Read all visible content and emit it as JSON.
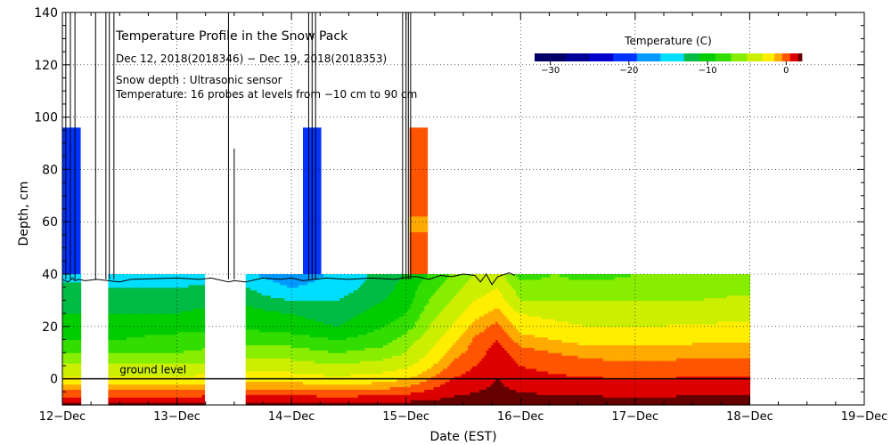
{
  "chart_data": {
    "type": "heatmap",
    "title": "Temperature Profile in the Snow Pack",
    "subtitle": "Dec 12, 2018(2018346) − Dec 19, 2018(2018353)",
    "notes": [
      "Snow depth : Ultrasonic sensor",
      "Temperature: 16 probes at levels from −10 cm to 90 cm"
    ],
    "ground_label": "ground level",
    "xlabel": "Date (EST)",
    "ylabel": "Depth, cm",
    "x_unit": "days since 12-Dec",
    "xlim": [
      0,
      7
    ],
    "ylim": [
      -10,
      140
    ],
    "x_ticks": [
      {
        "value": 0,
        "label": "12−Dec"
      },
      {
        "value": 1,
        "label": "13−Dec"
      },
      {
        "value": 2,
        "label": "14−Dec"
      },
      {
        "value": 3,
        "label": "15−Dec"
      },
      {
        "value": 4,
        "label": "16−Dec"
      },
      {
        "value": 5,
        "label": "17−Dec"
      },
      {
        "value": 6,
        "label": "18−Dec"
      },
      {
        "value": 7,
        "label": "19−Dec"
      }
    ],
    "y_ticks": [
      0,
      20,
      40,
      60,
      80,
      100,
      120,
      140
    ],
    "grid": true,
    "colorbar": {
      "title": "Temperature (C)",
      "range": [
        -32,
        2
      ],
      "ticks": [
        -30,
        -20,
        -10,
        0
      ],
      "bands": [
        {
          "from": -32,
          "to": -28,
          "color": "#000066"
        },
        {
          "from": -28,
          "to": -25,
          "color": "#000099"
        },
        {
          "from": -25,
          "to": -22,
          "color": "#0000cc"
        },
        {
          "from": -22,
          "to": -19,
          "color": "#0033ff"
        },
        {
          "from": -19,
          "to": -16,
          "color": "#0099ff"
        },
        {
          "from": -16,
          "to": -13,
          "color": "#00ddff"
        },
        {
          "from": -13,
          "to": -11,
          "color": "#00bb44"
        },
        {
          "from": -11,
          "to": -9,
          "color": "#00cc00"
        },
        {
          "from": -9,
          "to": -7,
          "color": "#33dd00"
        },
        {
          "from": -7,
          "to": -5,
          "color": "#88ee00"
        },
        {
          "from": -5,
          "to": -3,
          "color": "#ccee00"
        },
        {
          "from": -3,
          "to": -1.5,
          "color": "#ffee00"
        },
        {
          "from": -1.5,
          "to": -0.5,
          "color": "#ffaa00"
        },
        {
          "from": -0.5,
          "to": 0.5,
          "color": "#ff5500"
        },
        {
          "from": 0.5,
          "to": 1.5,
          "color": "#dd0000"
        },
        {
          "from": 1.5,
          "to": 2,
          "color": "#660000"
        }
      ]
    },
    "snow_depth": [
      [
        0.0,
        38
      ],
      [
        0.05,
        37
      ],
      [
        0.09,
        38.5
      ],
      [
        0.11,
        37.5
      ],
      [
        0.14,
        38
      ],
      [
        0.2,
        37.5
      ],
      [
        0.3,
        38
      ],
      [
        0.5,
        37
      ],
      [
        0.6,
        38
      ],
      [
        1.0,
        38.5
      ],
      [
        1.2,
        38
      ],
      [
        1.3,
        38.5
      ],
      [
        1.45,
        37
      ],
      [
        1.5,
        37.5
      ],
      [
        1.6,
        37
      ],
      [
        1.75,
        38.5
      ],
      [
        1.9,
        38
      ],
      [
        2.0,
        38.5
      ],
      [
        2.1,
        37.5
      ],
      [
        2.2,
        38
      ],
      [
        2.3,
        38.5
      ],
      [
        2.5,
        38
      ],
      [
        2.7,
        38.5
      ],
      [
        2.9,
        38
      ],
      [
        3.05,
        39
      ],
      [
        3.1,
        39
      ],
      [
        3.2,
        38
      ],
      [
        3.3,
        39.5
      ],
      [
        3.4,
        39
      ],
      [
        3.5,
        40
      ],
      [
        3.6,
        39.5
      ],
      [
        3.65,
        37
      ],
      [
        3.7,
        40
      ],
      [
        3.75,
        36
      ],
      [
        3.8,
        39
      ],
      [
        3.9,
        40.5
      ],
      [
        3.95,
        39.5
      ]
    ],
    "depth_spikes": [
      {
        "x": 0.0,
        "top": 140
      },
      {
        "x": 0.03,
        "top": 140
      },
      {
        "x": 0.07,
        "top": 140
      },
      {
        "x": 0.11,
        "top": 140
      },
      {
        "x": 0.29,
        "top": 140
      },
      {
        "x": 0.38,
        "top": 140
      },
      {
        "x": 0.41,
        "top": 140
      },
      {
        "x": 0.45,
        "top": 140
      },
      {
        "x": 1.45,
        "top": 140
      },
      {
        "x": 1.5,
        "top": 88
      },
      {
        "x": 2.15,
        "top": 140
      },
      {
        "x": 2.18,
        "top": 140
      },
      {
        "x": 2.21,
        "top": 140
      },
      {
        "x": 2.97,
        "top": 140
      },
      {
        "x": 3.0,
        "top": 140
      },
      {
        "x": 3.02,
        "top": 140
      },
      {
        "x": 3.04,
        "top": 140
      }
    ],
    "temperature_blocks": [
      {
        "x0": 0.0,
        "x1": 0.16,
        "y0": 40,
        "y1": 96,
        "value": -22
      },
      {
        "x0": 2.1,
        "x1": 2.26,
        "y0": 40,
        "y1": 96,
        "value": -22
      },
      {
        "x0": 3.03,
        "x1": 3.19,
        "y0": 40,
        "y1": 96,
        "value": 0
      },
      {
        "x0": 3.03,
        "x1": 3.19,
        "y0": 56,
        "y1": 62,
        "value": -1
      }
    ],
    "data_gaps": [
      [
        0.16,
        0.41
      ],
      [
        1.24,
        1.61
      ],
      [
        6.0,
        7.0
      ]
    ],
    "temperature_profile": {
      "depths": [
        -10,
        10,
        15,
        20,
        25,
        30,
        35,
        40
      ],
      "times": [
        0,
        0.5,
        1.0,
        1.5,
        2.0,
        2.4,
        2.8,
        3.0,
        3.2,
        3.4,
        3.6,
        3.8,
        4.0,
        4.3,
        4.6,
        5.0,
        5.5,
        6.0
      ],
      "values": [
        [
          2,
          -7,
          -9,
          -11,
          -11,
          -11,
          -12,
          -14
        ],
        [
          2,
          -7,
          -9,
          -10,
          -11,
          -12,
          -13,
          -16
        ],
        [
          2,
          -7,
          -8,
          -10,
          -11,
          -12,
          -13,
          -15
        ],
        [
          2,
          -6,
          -8,
          -9,
          -10,
          -11,
          -12,
          -14
        ],
        [
          2,
          -6,
          -8,
          -10,
          -11,
          -13,
          -16,
          -19
        ],
        [
          2,
          -7,
          -9,
          -11,
          -12,
          -13,
          -14,
          -15
        ],
        [
          2,
          -6,
          -8,
          -9,
          -10,
          -11,
          -12,
          -12
        ],
        [
          2,
          -5,
          -6,
          -8,
          -9,
          -10,
          -10,
          -11
        ],
        [
          2,
          -3,
          -4,
          -5,
          -6,
          -7,
          -8,
          -9
        ],
        [
          2,
          -1,
          -2,
          -3,
          -4,
          -5,
          -6,
          -7
        ],
        [
          2,
          0,
          -0.3,
          -1,
          -2,
          -3,
          -4,
          -5
        ],
        [
          2,
          1,
          0.5,
          -0.2,
          -1,
          -2,
          -3,
          -4
        ],
        [
          2,
          0,
          -1,
          -2,
          -3,
          -5,
          -6,
          -8
        ],
        [
          2,
          -0.5,
          -1.5,
          -2.5,
          -3.5,
          -5,
          -6,
          -7
        ],
        [
          2,
          -0.8,
          -2,
          -3,
          -4,
          -5,
          -6,
          -8
        ],
        [
          2,
          -1,
          -2,
          -3,
          -4,
          -5,
          -6,
          -7
        ],
        [
          2,
          -0.8,
          -1.8,
          -2.8,
          -4,
          -5,
          -6,
          -7
        ],
        [
          2,
          -0.8,
          -1.8,
          -2.5,
          -3.5,
          -4.5,
          -5.5,
          -6.5
        ]
      ]
    }
  }
}
